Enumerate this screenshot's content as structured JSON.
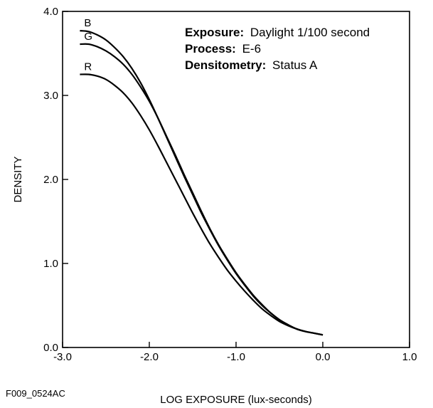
{
  "chart_data": {
    "type": "line",
    "xlabel": "LOG EXPOSURE (lux-seconds)",
    "ylabel": "DENSITY",
    "xlim": [
      -3.0,
      1.0
    ],
    "ylim": [
      0.0,
      4.0
    ],
    "xticks": [
      "-3.0",
      "-2.0",
      "-1.0",
      "0.0",
      "1.0"
    ],
    "yticks": [
      "0.0",
      "1.0",
      "2.0",
      "3.0",
      "4.0"
    ],
    "grid": false,
    "annotation": [
      {
        "label": "Exposure:",
        "value": "Daylight 1/100 second"
      },
      {
        "label": "Process:",
        "value": "E-6"
      },
      {
        "label": "Densitometry:",
        "value": "Status A"
      }
    ],
    "series": [
      {
        "name": "B",
        "x": [
          -2.8,
          -2.7,
          -2.6,
          -2.5,
          -2.4,
          -2.3,
          -2.2,
          -2.1,
          -2.0,
          -1.9,
          -1.8,
          -1.7,
          -1.6,
          -1.5,
          -1.4,
          -1.3,
          -1.2,
          -1.1,
          -1.0,
          -0.9,
          -0.8,
          -0.7,
          -0.6,
          -0.5,
          -0.4,
          -0.3,
          -0.2,
          -0.1,
          0.0
        ],
        "y": [
          3.77,
          3.76,
          3.72,
          3.66,
          3.57,
          3.46,
          3.32,
          3.15,
          2.95,
          2.73,
          2.5,
          2.27,
          2.04,
          1.82,
          1.6,
          1.4,
          1.21,
          1.04,
          0.88,
          0.74,
          0.61,
          0.5,
          0.41,
          0.33,
          0.27,
          0.22,
          0.19,
          0.17,
          0.15
        ]
      },
      {
        "name": "G",
        "x": [
          -2.8,
          -2.7,
          -2.6,
          -2.5,
          -2.4,
          -2.3,
          -2.2,
          -2.1,
          -2.0,
          -1.9,
          -1.8,
          -1.7,
          -1.6,
          -1.5,
          -1.4,
          -1.3,
          -1.2,
          -1.1,
          -1.0,
          -0.9,
          -0.8,
          -0.7,
          -0.6,
          -0.5,
          -0.4,
          -0.3,
          -0.2,
          -0.1,
          0.0
        ],
        "y": [
          3.61,
          3.61,
          3.58,
          3.53,
          3.46,
          3.37,
          3.25,
          3.1,
          2.93,
          2.73,
          2.51,
          2.29,
          2.06,
          1.84,
          1.62,
          1.41,
          1.22,
          1.05,
          0.89,
          0.75,
          0.62,
          0.51,
          0.41,
          0.33,
          0.27,
          0.22,
          0.19,
          0.17,
          0.15
        ]
      },
      {
        "name": "R",
        "x": [
          -2.8,
          -2.7,
          -2.6,
          -2.5,
          -2.4,
          -2.3,
          -2.2,
          -2.1,
          -2.0,
          -1.9,
          -1.8,
          -1.7,
          -1.6,
          -1.5,
          -1.4,
          -1.3,
          -1.2,
          -1.1,
          -1.0,
          -0.9,
          -0.8,
          -0.7,
          -0.6,
          -0.5,
          -0.4,
          -0.3,
          -0.2,
          -0.1,
          0.0
        ],
        "y": [
          3.25,
          3.25,
          3.23,
          3.19,
          3.12,
          3.03,
          2.91,
          2.76,
          2.59,
          2.4,
          2.2,
          2.0,
          1.8,
          1.6,
          1.41,
          1.23,
          1.07,
          0.92,
          0.79,
          0.67,
          0.56,
          0.46,
          0.38,
          0.31,
          0.26,
          0.22,
          0.19,
          0.17,
          0.15
        ]
      }
    ]
  },
  "figure_code": "F009_0524AC"
}
